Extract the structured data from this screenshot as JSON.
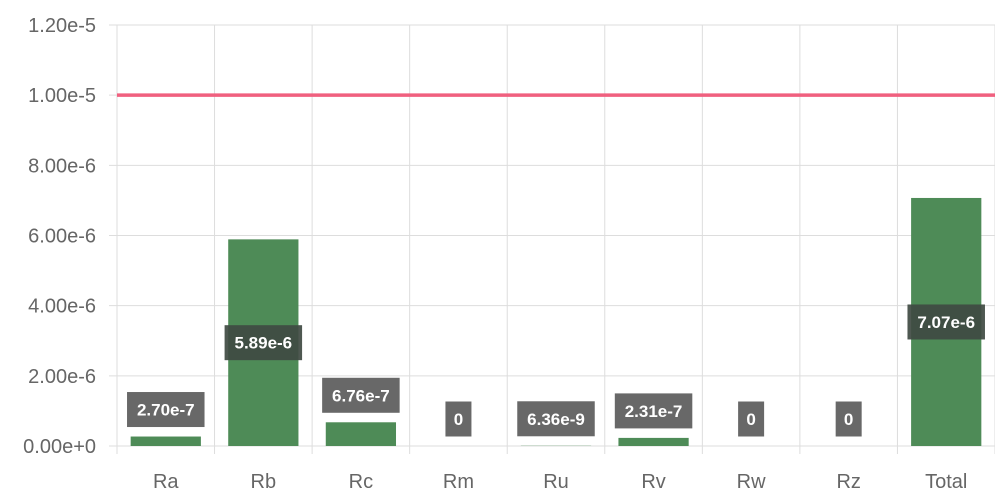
{
  "chart_data": {
    "type": "bar",
    "categories": [
      "Ra",
      "Rb",
      "Rc",
      "Rm",
      "Ru",
      "Rv",
      "Rw",
      "Rz",
      "Total"
    ],
    "values": [
      2.7e-07,
      5.89e-06,
      6.76e-07,
      0,
      6.36e-09,
      2.31e-07,
      0,
      0,
      7.07e-06
    ],
    "data_labels": [
      "2.70e-7",
      "5.89e-6",
      "6.76e-7",
      "0",
      "6.36e-9",
      "2.31e-7",
      "0",
      "0",
      "7.07e-6"
    ],
    "y_ticks": [
      0,
      2e-06,
      4e-06,
      6e-06,
      8e-06,
      1e-05,
      1.2e-05
    ],
    "y_tick_labels": [
      "0.00e+0",
      "2.00e-6",
      "4.00e-6",
      "6.00e-6",
      "8.00e-6",
      "1.00e-5",
      "1.20e-5"
    ],
    "ylim": [
      0,
      1.2e-05
    ],
    "threshold": 1e-05,
    "title": "",
    "xlabel": "",
    "ylabel": "",
    "grid": true,
    "legend": "none",
    "colors": {
      "bar": "#4e8b57",
      "threshold": "#f0607f",
      "grid": "#dddddd",
      "label_box": "#5b5b5b",
      "label_box_dark": "#3f4a42",
      "tick_text": "#666666"
    }
  }
}
